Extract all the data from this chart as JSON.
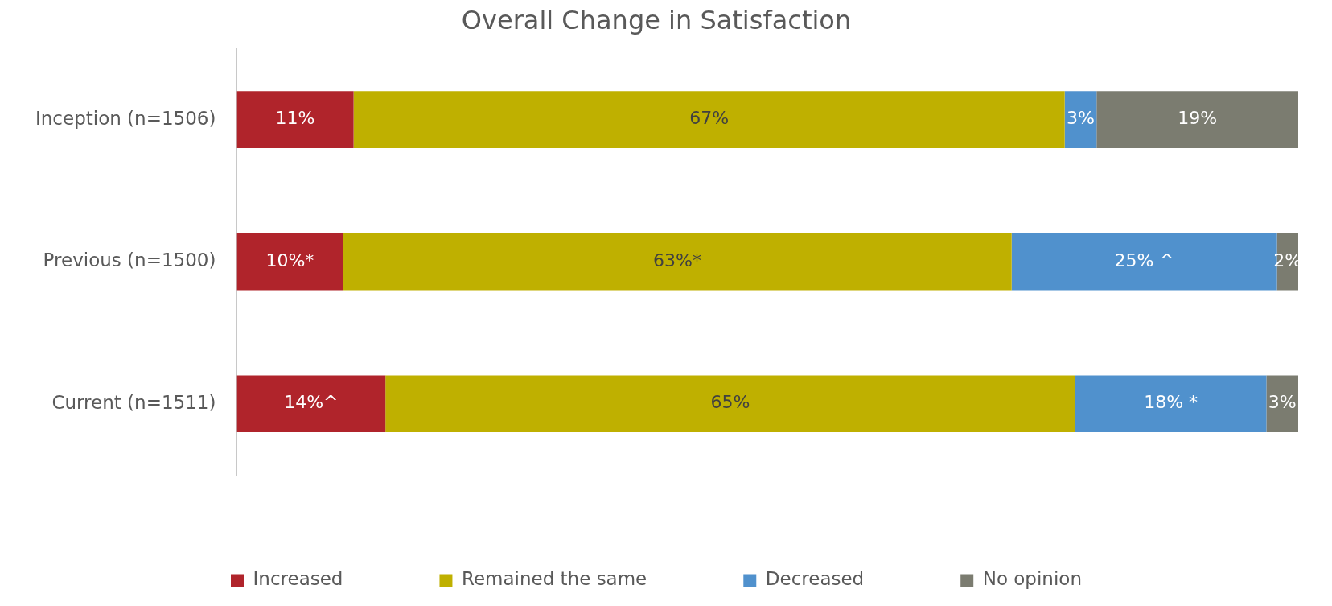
{
  "chart_data": {
    "type": "bar",
    "orientation": "horizontal",
    "stacked": true,
    "title": "Overall Change in Satisfaction",
    "categories": [
      "Inception (n=1506)",
      "Previous (n=1500)",
      "Current (n=1511)"
    ],
    "series": [
      {
        "name": "Increased",
        "color": "#b0242b",
        "values": [
          11,
          10,
          14
        ],
        "value_labels": [
          "11%",
          "10%*",
          "14%^"
        ]
      },
      {
        "name": "Remained the same",
        "color": "#bfb000",
        "values": [
          67,
          63,
          65
        ],
        "value_labels": [
          "67%",
          "63%*",
          "65%"
        ]
      },
      {
        "name": "Decreased",
        "color": "#5091cd",
        "values": [
          3,
          25,
          18
        ],
        "value_labels": [
          "3%",
          "25% ^",
          "18% *"
        ]
      },
      {
        "name": "No opinion",
        "color": "#7b7c70",
        "values": [
          19,
          2,
          3
        ],
        "value_labels": [
          "19%",
          "2%",
          "3%"
        ]
      }
    ],
    "legend": "bottom"
  }
}
